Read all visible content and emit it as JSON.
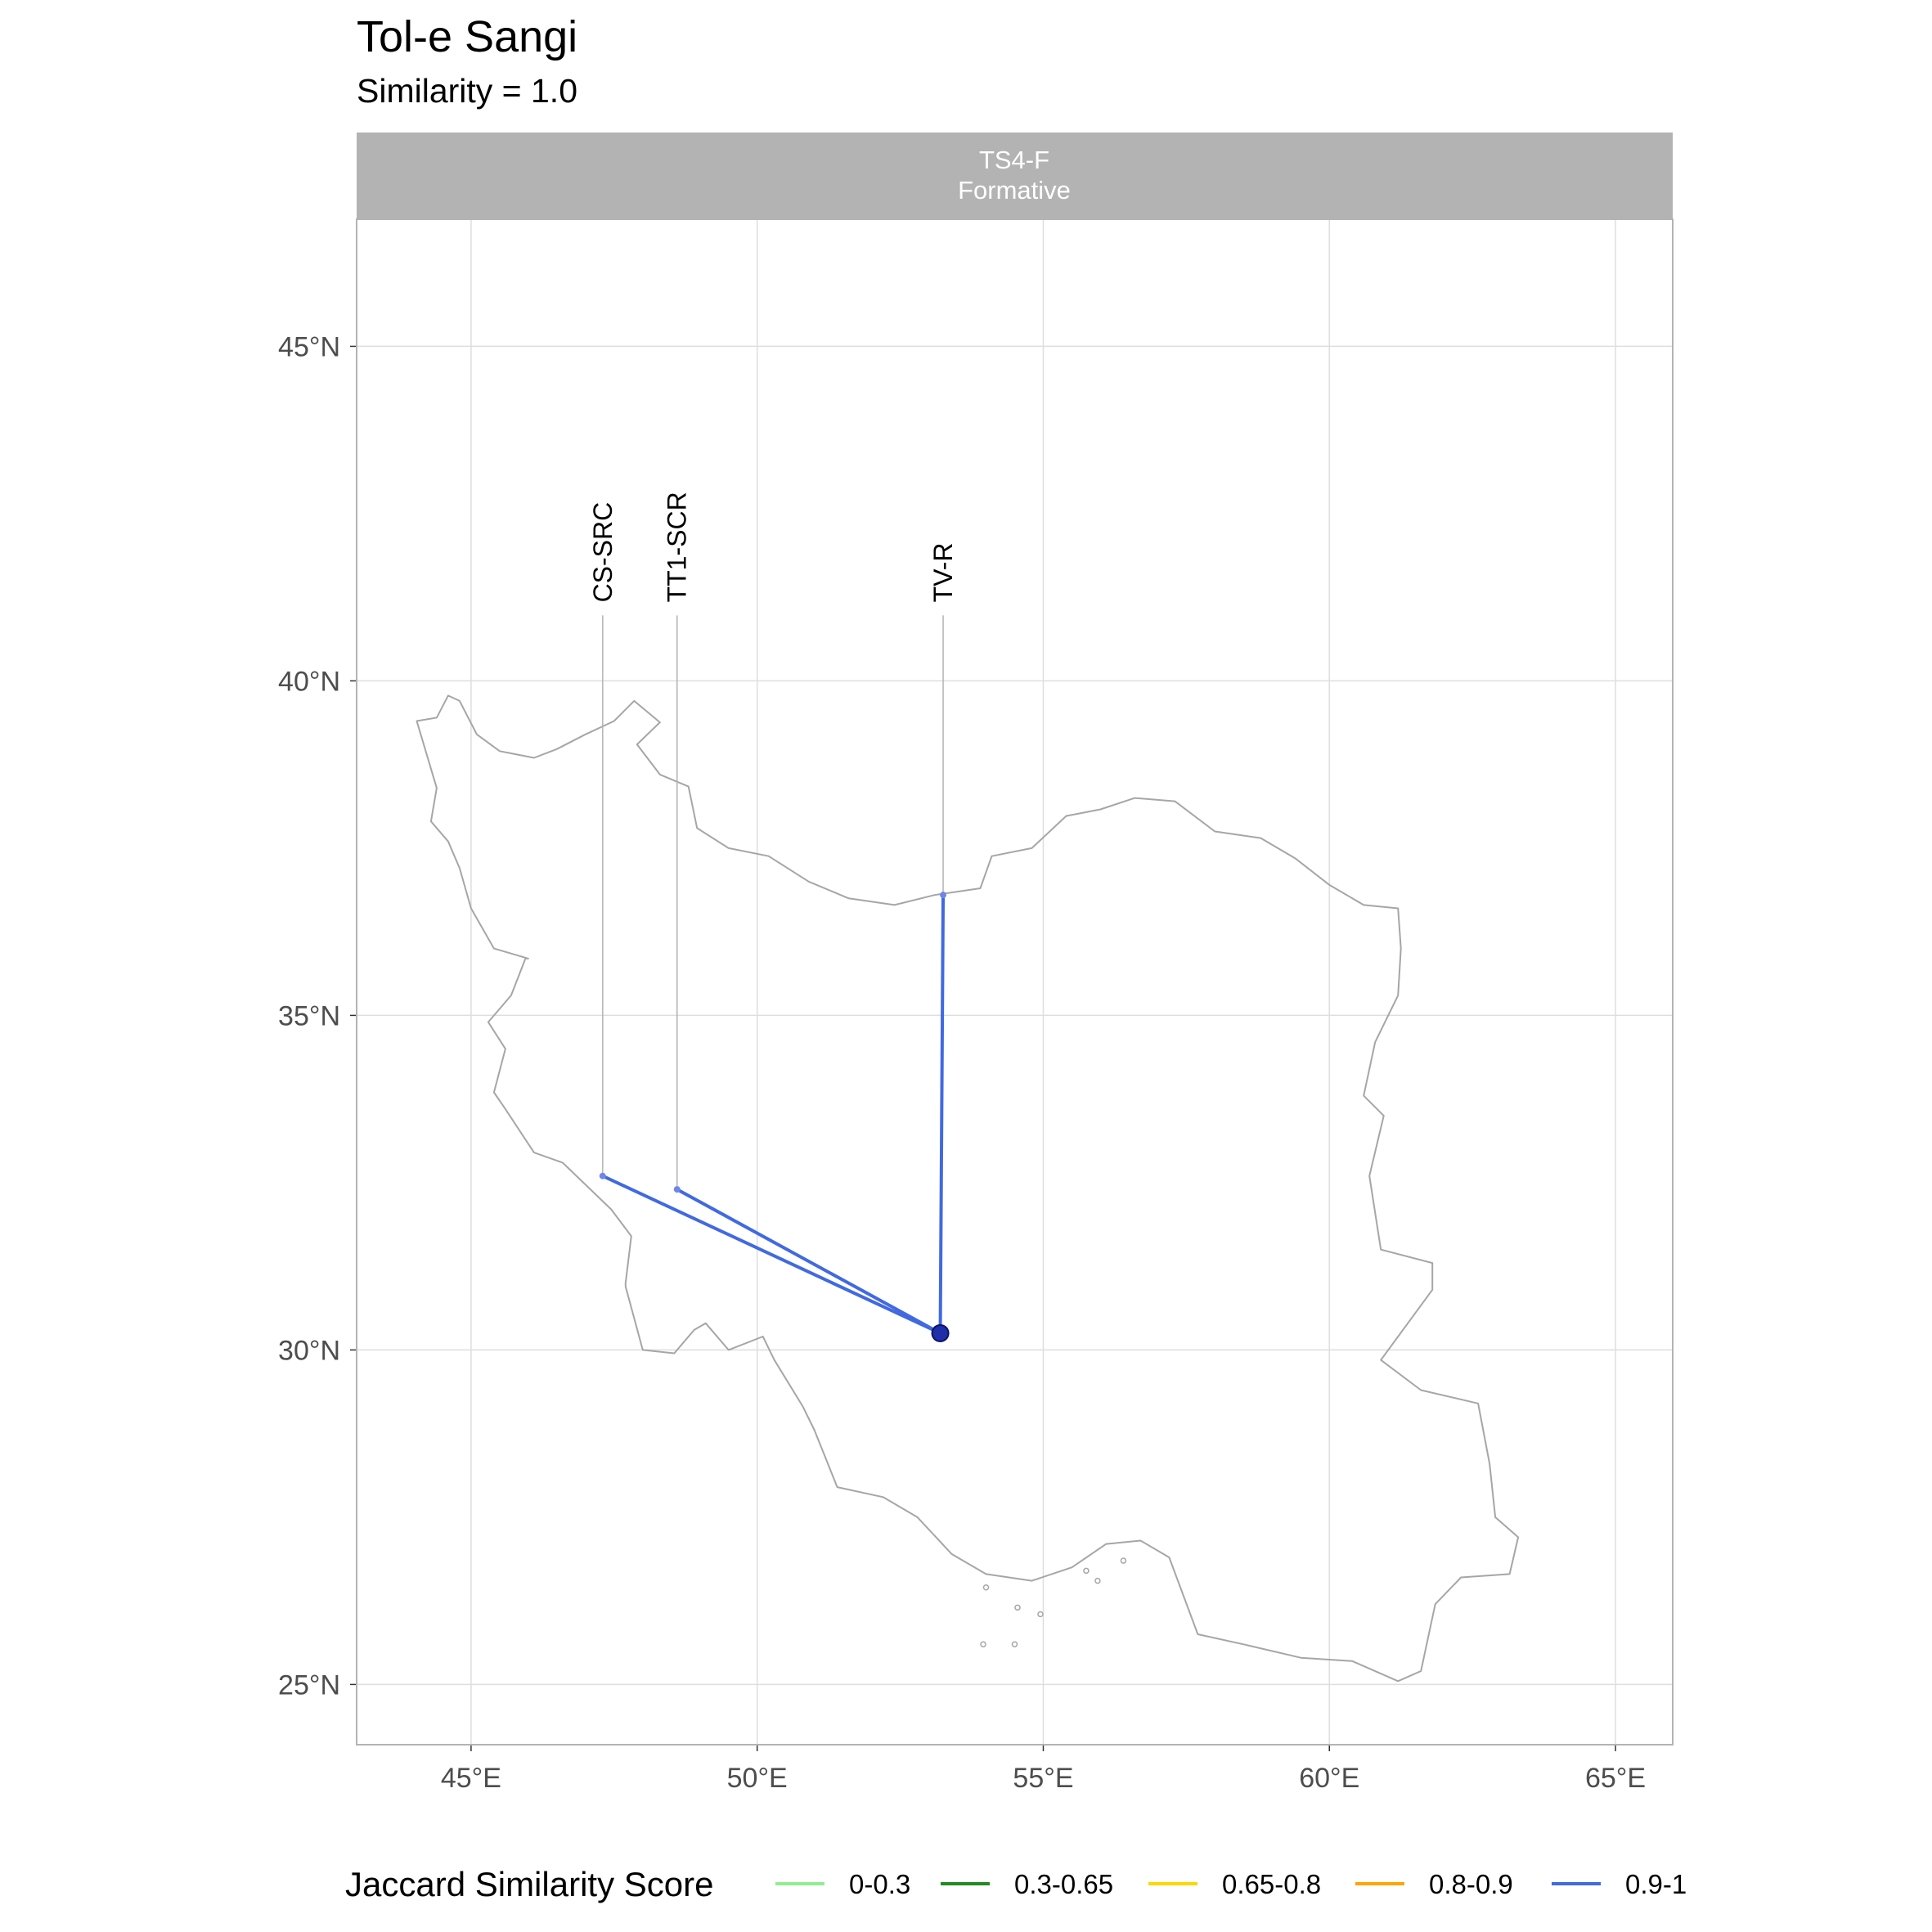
{
  "title": "Tol-e Sangi",
  "subtitle": "Similarity = 1.0",
  "facet": {
    "line1": "TS4-F",
    "line2": "Formative"
  },
  "chart_data": {
    "type": "map",
    "title": "Tol-e Sangi",
    "subtitle": "Similarity = 1.0",
    "xlim": [
      43,
      66
    ],
    "ylim": [
      24.1,
      46.9
    ],
    "x_ticks": [
      {
        "value": 45,
        "label": "45°E"
      },
      {
        "value": 50,
        "label": "50°E"
      },
      {
        "value": 55,
        "label": "55°E"
      },
      {
        "value": 60,
        "label": "60°E"
      },
      {
        "value": 65,
        "label": "65°E"
      }
    ],
    "y_ticks": [
      {
        "value": 25,
        "label": "25°N"
      },
      {
        "value": 30,
        "label": "30°N"
      },
      {
        "value": 35,
        "label": "35°N"
      },
      {
        "value": 40,
        "label": "40°N"
      },
      {
        "value": 45,
        "label": "45°N"
      }
    ],
    "grid": true,
    "focal_site": {
      "name": "Tol-e Sangi",
      "lon": 53.2,
      "lat": 30.25
    },
    "connections": [
      {
        "site": "CS-SRC",
        "lon": 47.3,
        "lat": 32.6,
        "label_lat": 41.1,
        "category": "0.9-1"
      },
      {
        "site": "TT1-SCR",
        "lon": 48.6,
        "lat": 32.4,
        "label_lat": 41.1,
        "category": "0.9-1"
      },
      {
        "site": "TV-R",
        "lon": 53.25,
        "lat": 36.8,
        "label_lat": 41.1,
        "category": "0.9-1"
      }
    ],
    "legend": {
      "title": "Jaccard Similarity Score",
      "position": "bottom",
      "items": [
        {
          "label": "0-0.3",
          "color": "#90ee90"
        },
        {
          "label": "0.3-0.65",
          "color": "#228b22"
        },
        {
          "label": "0.65-0.8",
          "color": "#ffd700"
        },
        {
          "label": "0.8-0.9",
          "color": "#ffa500"
        },
        {
          "label": "0.9-1",
          "color": "#4169e1"
        }
      ]
    },
    "country_outline": [
      [
        44.05,
        39.4
      ],
      [
        44.4,
        39.45
      ],
      [
        44.6,
        39.78
      ],
      [
        44.8,
        39.7
      ],
      [
        45.1,
        39.2
      ],
      [
        45.5,
        38.95
      ],
      [
        46.1,
        38.85
      ],
      [
        46.5,
        38.98
      ],
      [
        47.0,
        39.2
      ],
      [
        47.5,
        39.4
      ],
      [
        47.85,
        39.7
      ],
      [
        48.3,
        39.38
      ],
      [
        47.9,
        39.05
      ],
      [
        48.3,
        38.6
      ],
      [
        48.8,
        38.42
      ],
      [
        48.95,
        37.8
      ],
      [
        49.5,
        37.5
      ],
      [
        50.2,
        37.38
      ],
      [
        50.9,
        37.0
      ],
      [
        51.6,
        36.75
      ],
      [
        52.4,
        36.65
      ],
      [
        53.1,
        36.8
      ],
      [
        53.9,
        36.9
      ],
      [
        54.1,
        37.38
      ],
      [
        54.8,
        37.5
      ],
      [
        55.4,
        37.98
      ],
      [
        56.0,
        38.08
      ],
      [
        56.6,
        38.25
      ],
      [
        57.3,
        38.2
      ],
      [
        58.0,
        37.75
      ],
      [
        58.8,
        37.65
      ],
      [
        59.4,
        37.35
      ],
      [
        60.0,
        36.95
      ],
      [
        60.6,
        36.65
      ],
      [
        61.2,
        36.6
      ],
      [
        61.25,
        36.0
      ],
      [
        61.2,
        35.3
      ],
      [
        60.8,
        34.6
      ],
      [
        60.6,
        33.8
      ],
      [
        60.95,
        33.5
      ],
      [
        60.7,
        32.6
      ],
      [
        60.9,
        31.5
      ],
      [
        61.8,
        31.3
      ],
      [
        61.8,
        30.9
      ],
      [
        60.9,
        29.85
      ],
      [
        61.6,
        29.4
      ],
      [
        62.6,
        29.2
      ],
      [
        62.8,
        28.3
      ],
      [
        62.9,
        27.5
      ],
      [
        63.3,
        27.2
      ],
      [
        63.15,
        26.65
      ],
      [
        62.3,
        26.6
      ],
      [
        61.85,
        26.2
      ],
      [
        61.6,
        25.2
      ],
      [
        61.2,
        25.05
      ],
      [
        60.4,
        25.35
      ],
      [
        59.5,
        25.4
      ],
      [
        58.5,
        25.6
      ],
      [
        57.7,
        25.75
      ],
      [
        57.2,
        26.9
      ],
      [
        56.7,
        27.15
      ],
      [
        56.1,
        27.1
      ],
      [
        55.5,
        26.75
      ],
      [
        54.8,
        26.55
      ],
      [
        54.0,
        26.65
      ],
      [
        53.4,
        26.95
      ],
      [
        52.8,
        27.5
      ],
      [
        52.2,
        27.8
      ],
      [
        51.4,
        27.95
      ],
      [
        51.0,
        28.8
      ],
      [
        50.8,
        29.15
      ],
      [
        50.3,
        29.85
      ],
      [
        50.1,
        30.2
      ],
      [
        49.5,
        30.0
      ],
      [
        49.1,
        30.4
      ],
      [
        48.9,
        30.3
      ],
      [
        48.55,
        29.95
      ],
      [
        48.0,
        30.0
      ],
      [
        47.7,
        30.95
      ],
      [
        47.7,
        31.0
      ],
      [
        47.8,
        31.7
      ],
      [
        47.45,
        32.1
      ],
      [
        46.6,
        32.8
      ],
      [
        46.1,
        32.95
      ],
      [
        45.6,
        33.6
      ],
      [
        45.4,
        33.85
      ],
      [
        45.6,
        34.5
      ],
      [
        45.3,
        34.9
      ],
      [
        45.7,
        35.3
      ],
      [
        45.95,
        35.85
      ],
      [
        46.0,
        35.85
      ],
      [
        45.4,
        36.0
      ],
      [
        45.0,
        36.6
      ],
      [
        44.8,
        37.2
      ],
      [
        44.6,
        37.6
      ],
      [
        44.3,
        37.9
      ],
      [
        44.4,
        38.4
      ],
      [
        44.05,
        39.4
      ]
    ]
  }
}
